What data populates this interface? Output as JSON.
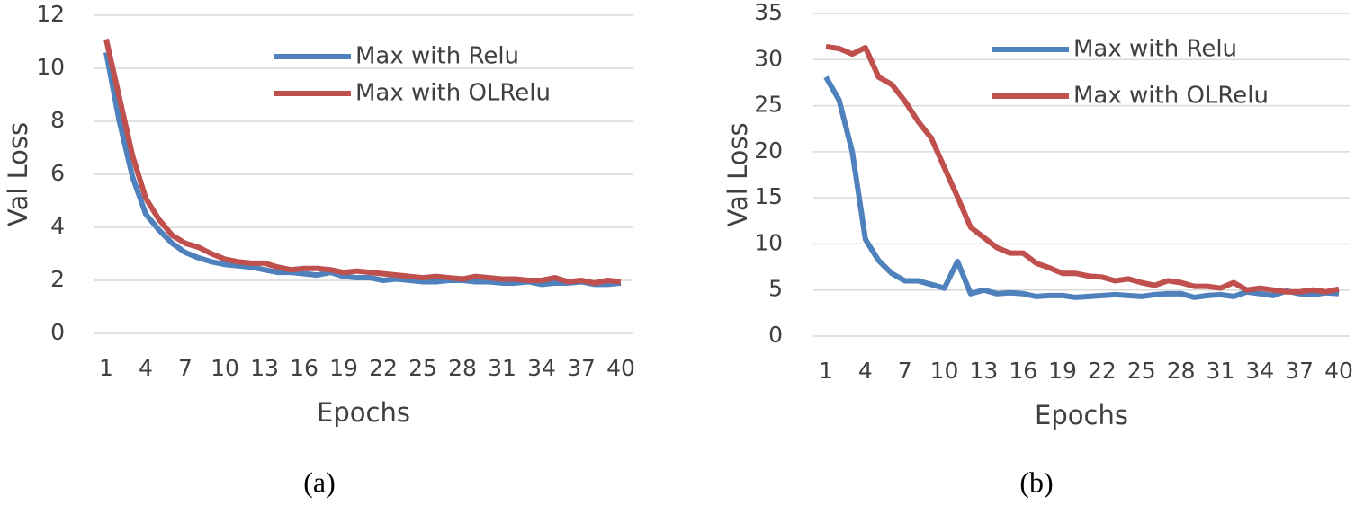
{
  "chart_data": [
    {
      "type": "line",
      "caption": "(a)",
      "x_label": "Epochs",
      "y_label": "Val Loss",
      "x": [
        1,
        2,
        3,
        4,
        5,
        6,
        7,
        8,
        9,
        10,
        11,
        12,
        13,
        14,
        15,
        16,
        17,
        18,
        19,
        20,
        21,
        22,
        23,
        24,
        25,
        26,
        27,
        28,
        29,
        30,
        31,
        32,
        33,
        34,
        35,
        36,
        37,
        38,
        39,
        40
      ],
      "xlim": [
        1,
        40
      ],
      "xticks": [
        1,
        4,
        7,
        10,
        13,
        16,
        19,
        22,
        25,
        28,
        31,
        34,
        37,
        40
      ],
      "ylim": [
        0,
        12
      ],
      "yticks": [
        0,
        2,
        4,
        6,
        8,
        10,
        12
      ],
      "grid": true,
      "legend": "upper right",
      "series": [
        {
          "name": "Max with Relu",
          "color": "#4f81bd",
          "values": [
            10.6,
            8.0,
            5.9,
            4.5,
            3.9,
            3.4,
            3.05,
            2.85,
            2.7,
            2.6,
            2.55,
            2.5,
            2.4,
            2.3,
            2.3,
            2.25,
            2.2,
            2.3,
            2.15,
            2.1,
            2.1,
            2.0,
            2.05,
            2.0,
            1.95,
            1.95,
            2.0,
            2.0,
            1.95,
            1.95,
            1.9,
            1.9,
            1.95,
            1.85,
            1.9,
            1.9,
            1.95,
            1.85,
            1.85,
            1.9
          ]
        },
        {
          "name": "Max with OLRelu",
          "color": "#c0504d",
          "values": [
            11.1,
            8.9,
            6.7,
            5.1,
            4.3,
            3.7,
            3.4,
            3.25,
            3.0,
            2.8,
            2.7,
            2.65,
            2.65,
            2.5,
            2.4,
            2.45,
            2.45,
            2.4,
            2.3,
            2.35,
            2.3,
            2.25,
            2.2,
            2.15,
            2.1,
            2.15,
            2.1,
            2.05,
            2.15,
            2.1,
            2.05,
            2.05,
            2.0,
            2.0,
            2.1,
            1.95,
            2.0,
            1.9,
            2.0,
            1.95
          ]
        }
      ]
    },
    {
      "type": "line",
      "caption": "(b)",
      "x_label": "Epochs",
      "y_label": "Val Loss",
      "x": [
        1,
        2,
        3,
        4,
        5,
        6,
        7,
        8,
        9,
        10,
        11,
        12,
        13,
        14,
        15,
        16,
        17,
        18,
        19,
        20,
        21,
        22,
        23,
        24,
        25,
        26,
        27,
        28,
        29,
        30,
        31,
        32,
        33,
        34,
        35,
        36,
        37,
        38,
        39,
        40
      ],
      "xlim": [
        1,
        40
      ],
      "xticks": [
        1,
        4,
        7,
        10,
        13,
        16,
        19,
        22,
        25,
        28,
        31,
        34,
        37,
        40
      ],
      "ylim": [
        0,
        35
      ],
      "yticks": [
        0,
        5,
        10,
        15,
        20,
        25,
        30,
        35
      ],
      "grid": true,
      "legend": "upper right",
      "series": [
        {
          "name": "Max with Relu",
          "color": "#4f81bd",
          "values": [
            28.1,
            25.6,
            20,
            10.5,
            8.2,
            6.8,
            6.0,
            6.0,
            5.6,
            5.2,
            8.1,
            4.6,
            5.0,
            4.6,
            4.7,
            4.6,
            4.3,
            4.4,
            4.4,
            4.2,
            4.3,
            4.4,
            4.5,
            4.4,
            4.3,
            4.5,
            4.6,
            4.6,
            4.2,
            4.4,
            4.5,
            4.3,
            4.8,
            4.6,
            4.4,
            4.9,
            4.6,
            4.5,
            4.7,
            4.6
          ]
        },
        {
          "name": "Max with OLRelu",
          "color": "#c0504d",
          "values": [
            31.4,
            31.2,
            30.6,
            31.3,
            28.1,
            27.3,
            25.5,
            23.3,
            21.5,
            18.3,
            15.1,
            11.8,
            10.7,
            9.6,
            9.0,
            9.0,
            7.9,
            7.4,
            6.8,
            6.8,
            6.5,
            6.4,
            6.0,
            6.2,
            5.8,
            5.5,
            6.0,
            5.8,
            5.4,
            5.4,
            5.2,
            5.8,
            5.0,
            5.2,
            5.0,
            4.8,
            4.8,
            5.0,
            4.8,
            5.1
          ]
        }
      ]
    }
  ]
}
